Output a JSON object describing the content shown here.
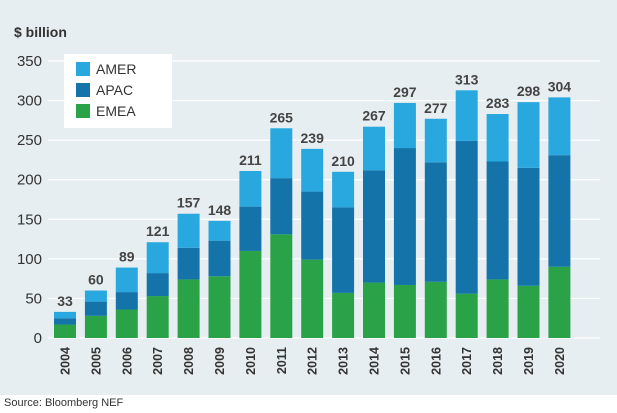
{
  "source": "Source: Bloomberg NEF",
  "colors": {
    "AMER": "#29a8e0",
    "APAC": "#1473a8",
    "EMEA": "#2aa348",
    "background": "#e6eef1",
    "grid": "#ffffff"
  },
  "chart_data": {
    "type": "bar",
    "stacked": true,
    "ylabel": "$ billion",
    "ylim": [
      0,
      350
    ],
    "yticks": [
      0,
      50,
      100,
      150,
      200,
      250,
      300,
      350
    ],
    "grid": true,
    "legend_position": "top-left",
    "categories": [
      "2004",
      "2005",
      "2006",
      "2007",
      "2008",
      "2009",
      "2010",
      "2011",
      "2012",
      "2013",
      "2014",
      "2015",
      "2016",
      "2017",
      "2018",
      "2019",
      "2020"
    ],
    "series": [
      {
        "name": "EMEA",
        "values": [
          17,
          28,
          36,
          53,
          74,
          78,
          110,
          131,
          99,
          57,
          70,
          67,
          71,
          56,
          74,
          66,
          90
        ]
      },
      {
        "name": "APAC",
        "values": [
          8,
          18,
          22,
          29,
          40,
          45,
          56,
          71,
          86,
          108,
          142,
          173,
          151,
          193,
          149,
          149,
          141
        ]
      },
      {
        "name": "AMER",
        "values": [
          8,
          14,
          31,
          39,
          43,
          25,
          45,
          63,
          54,
          45,
          55,
          57,
          55,
          64,
          60,
          83,
          73
        ]
      }
    ],
    "totals": [
      33,
      60,
      89,
      121,
      157,
      148,
      211,
      265,
      239,
      210,
      267,
      297,
      277,
      313,
      283,
      298,
      304
    ]
  }
}
